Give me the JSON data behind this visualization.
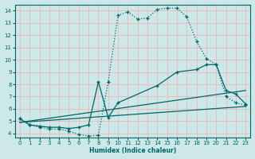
{
  "bg_color": "#cce8e8",
  "grid_color": "#ffaaaa",
  "line_color": "#006666",
  "xlabel": "Humidex (Indice chaleur)",
  "xlim": [
    -0.5,
    23.5
  ],
  "ylim": [
    3.7,
    14.5
  ],
  "xticks": [
    0,
    1,
    2,
    3,
    4,
    5,
    6,
    7,
    8,
    9,
    10,
    11,
    12,
    13,
    14,
    15,
    16,
    17,
    18,
    19,
    20,
    21,
    22,
    23
  ],
  "yticks": [
    4,
    5,
    6,
    7,
    8,
    9,
    10,
    11,
    12,
    13,
    14
  ],
  "curve1_x": [
    0,
    1,
    2,
    3,
    4,
    5,
    6,
    7,
    8,
    9,
    10,
    11,
    12,
    13,
    14,
    15,
    16,
    17,
    18,
    19,
    20,
    21,
    22,
    23
  ],
  "curve1_y": [
    5.2,
    4.7,
    4.5,
    4.35,
    4.35,
    4.2,
    3.9,
    3.8,
    3.85,
    8.2,
    13.6,
    13.9,
    13.3,
    13.4,
    14.1,
    14.2,
    14.2,
    13.5,
    11.5,
    10.1,
    9.6,
    7.0,
    6.5,
    6.3
  ],
  "curve2_x": [
    0,
    1,
    2,
    3,
    4,
    5,
    6,
    7,
    8,
    9,
    10,
    14,
    16,
    18,
    19,
    20,
    21,
    22,
    23
  ],
  "curve2_y": [
    5.2,
    4.7,
    4.6,
    4.5,
    4.5,
    4.4,
    4.5,
    4.7,
    8.2,
    5.3,
    6.5,
    7.9,
    9.0,
    9.2,
    9.6,
    9.6,
    7.5,
    7.2,
    6.4
  ],
  "line1_x": [
    0,
    23
  ],
  "line1_y": [
    4.9,
    7.5
  ],
  "line2_x": [
    0,
    23
  ],
  "line2_y": [
    4.9,
    6.2
  ]
}
